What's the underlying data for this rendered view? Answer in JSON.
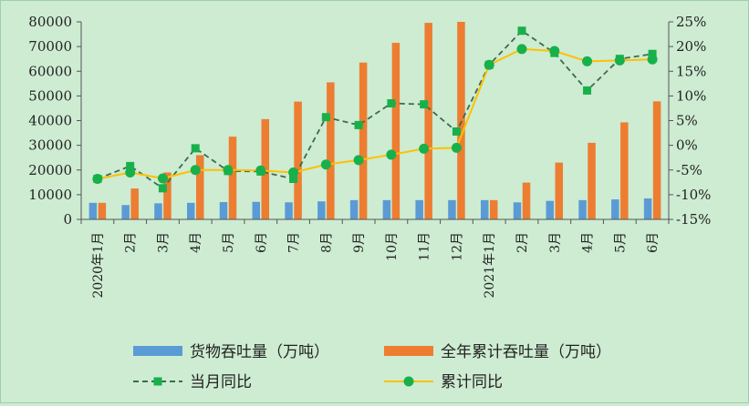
{
  "chart_data": {
    "type": "bar",
    "categories": [
      "2020年1月",
      "2月",
      "3月",
      "4月",
      "5月",
      "6月",
      "7月",
      "8月",
      "9月",
      "10月",
      "11月",
      "12月",
      "2021年1月",
      "2月",
      "3月",
      "4月",
      "5月",
      "6月"
    ],
    "y_left": {
      "range": [
        0,
        80000
      ],
      "ticks": [
        "0",
        "10000",
        "20000",
        "30000",
        "40000",
        "50000",
        "60000",
        "70000",
        "80000"
      ]
    },
    "y_right": {
      "range": [
        -15,
        25
      ],
      "ticks": [
        "-15%",
        "-10%",
        "-5%",
        "0%",
        "5%",
        "10%",
        "15%",
        "20%",
        "25%"
      ]
    },
    "series": [
      {
        "name": "货物吞吐量（万吨）",
        "type": "bar",
        "axis": "left",
        "color": "#5b9bd5",
        "values": [
          6700,
          5800,
          6500,
          6700,
          7000,
          7100,
          6900,
          7300,
          7800,
          7800,
          7800,
          7800,
          7800,
          6900,
          7500,
          7800,
          8100,
          8500
        ]
      },
      {
        "name": "全年累计吞吐量（万吨）",
        "type": "bar",
        "axis": "left",
        "color": "#ed7d31",
        "values": [
          6700,
          12500,
          19000,
          26000,
          33500,
          40600,
          47700,
          55500,
          63500,
          71500,
          79600,
          80000,
          7800,
          14900,
          23000,
          31000,
          39300,
          47800
        ]
      },
      {
        "name": "当月同比",
        "type": "line",
        "axis": "right",
        "color": "#3d6b4f",
        "marker_color": "#18b04a",
        "dashed": true,
        "values": [
          -6.8,
          -4.2,
          -8.7,
          -0.6,
          -5.2,
          -5.3,
          -6.8,
          5.7,
          4.1,
          8.5,
          8.3,
          2.8,
          16.3,
          23.2,
          18.7,
          11.1,
          17.5,
          18.5
        ]
      },
      {
        "name": "累计同比",
        "type": "line",
        "axis": "right",
        "color": "#ffc000",
        "marker_color": "#18b04a",
        "dashed": false,
        "values": [
          -6.8,
          -5.5,
          -6.7,
          -5.0,
          -5.0,
          -5.1,
          -5.5,
          -3.9,
          -3.0,
          -1.9,
          -0.7,
          -0.5,
          16.3,
          19.5,
          19.1,
          17.0,
          17.2,
          17.4
        ]
      }
    ]
  }
}
